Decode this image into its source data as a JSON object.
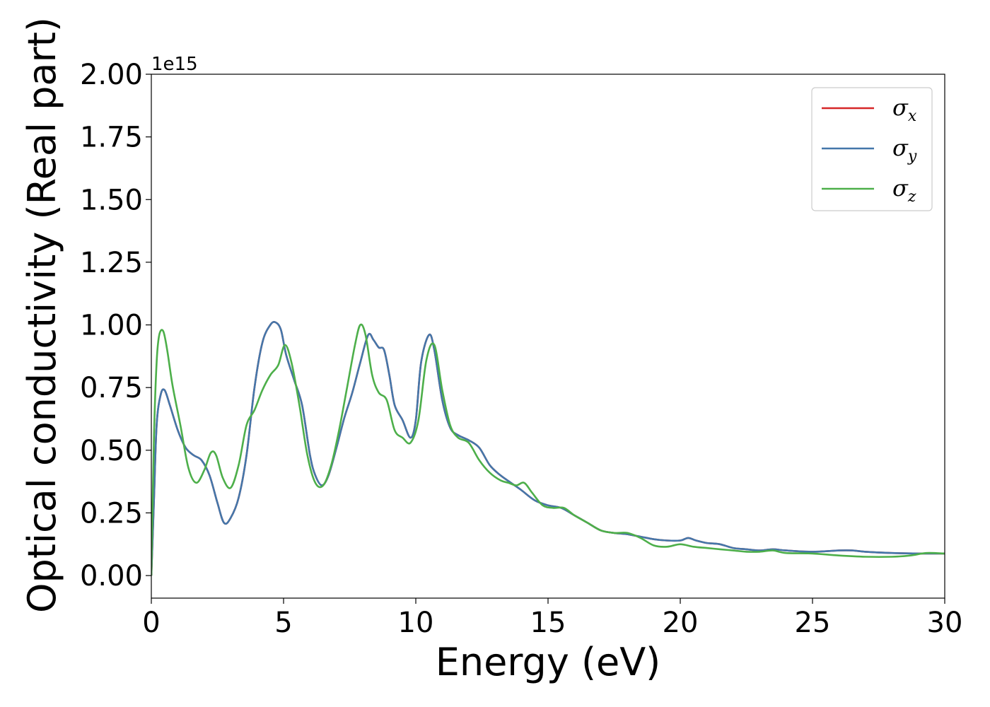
{
  "chart_data": {
    "type": "line",
    "xlabel": "Energy (eV)",
    "ylabel": "Optical conductivity (Real part)",
    "y_offset_label": "1e15",
    "xlim": [
      0,
      30
    ],
    "ylim": [
      -0.09,
      2.0
    ],
    "x_ticks": [
      0,
      5,
      10,
      15,
      20,
      25,
      30
    ],
    "x_tick_labels": [
      "0",
      "5",
      "10",
      "15",
      "20",
      "25",
      "30"
    ],
    "y_ticks": [
      0,
      0.25,
      0.5,
      0.75,
      1.0,
      1.25,
      1.5,
      1.75,
      2.0
    ],
    "y_tick_labels": [
      "0.00",
      "0.25",
      "0.50",
      "0.75",
      "1.00",
      "1.25",
      "1.50",
      "1.75",
      "2.00"
    ],
    "grid": false,
    "legend_position": "top-right",
    "series": [
      {
        "name": "σx",
        "name_base": "σ",
        "name_sub": "x",
        "color": "#d62728",
        "x": [
          0,
          0.1,
          0.2,
          0.35,
          0.5,
          0.7,
          1.0,
          1.3,
          1.6,
          1.9,
          2.2,
          2.5,
          2.75,
          3.0,
          3.3,
          3.6,
          3.9,
          4.2,
          4.5,
          4.7,
          4.9,
          5.1,
          5.4,
          5.7,
          6.0,
          6.2,
          6.45,
          6.7,
          7.0,
          7.3,
          7.6,
          7.9,
          8.2,
          8.4,
          8.6,
          8.8,
          9.0,
          9.2,
          9.5,
          9.8,
          10.0,
          10.2,
          10.5,
          10.7,
          11.0,
          11.3,
          11.6,
          12.0,
          12.4,
          12.8,
          13.2,
          13.6,
          14.0,
          14.5,
          15.0,
          15.5,
          16.0,
          16.5,
          17.0,
          17.5,
          18.0,
          18.5,
          19.0,
          19.5,
          20.0,
          20.3,
          20.6,
          21.0,
          21.5,
          22.0,
          22.5,
          23.0,
          23.5,
          24.0,
          25.0,
          26.0,
          26.5,
          27.0,
          28.0,
          29.0,
          30.0
        ],
        "values": [
          0,
          0.3,
          0.6,
          0.72,
          0.74,
          0.68,
          0.58,
          0.51,
          0.48,
          0.46,
          0.4,
          0.29,
          0.21,
          0.23,
          0.31,
          0.48,
          0.75,
          0.93,
          1.0,
          1.01,
          0.98,
          0.88,
          0.78,
          0.68,
          0.48,
          0.4,
          0.36,
          0.4,
          0.51,
          0.63,
          0.73,
          0.85,
          0.96,
          0.94,
          0.91,
          0.9,
          0.8,
          0.68,
          0.62,
          0.55,
          0.62,
          0.85,
          0.96,
          0.9,
          0.7,
          0.59,
          0.56,
          0.54,
          0.51,
          0.44,
          0.4,
          0.37,
          0.34,
          0.3,
          0.28,
          0.27,
          0.24,
          0.21,
          0.18,
          0.17,
          0.165,
          0.155,
          0.145,
          0.14,
          0.14,
          0.15,
          0.14,
          0.13,
          0.125,
          0.11,
          0.105,
          0.1,
          0.105,
          0.1,
          0.095,
          0.1,
          0.1,
          0.095,
          0.09,
          0.088,
          0.088
        ]
      },
      {
        "name": "σy",
        "name_base": "σ",
        "name_sub": "y",
        "color": "#4477aa",
        "x": [
          0,
          0.1,
          0.2,
          0.35,
          0.5,
          0.7,
          1.0,
          1.3,
          1.6,
          1.9,
          2.2,
          2.5,
          2.75,
          3.0,
          3.3,
          3.6,
          3.9,
          4.2,
          4.5,
          4.7,
          4.9,
          5.1,
          5.4,
          5.7,
          6.0,
          6.2,
          6.45,
          6.7,
          7.0,
          7.3,
          7.6,
          7.9,
          8.2,
          8.4,
          8.6,
          8.8,
          9.0,
          9.2,
          9.5,
          9.8,
          10.0,
          10.2,
          10.5,
          10.7,
          11.0,
          11.3,
          11.6,
          12.0,
          12.4,
          12.8,
          13.2,
          13.6,
          14.0,
          14.5,
          15.0,
          15.5,
          16.0,
          16.5,
          17.0,
          17.5,
          18.0,
          18.5,
          19.0,
          19.5,
          20.0,
          20.3,
          20.6,
          21.0,
          21.5,
          22.0,
          22.5,
          23.0,
          23.5,
          24.0,
          25.0,
          26.0,
          26.5,
          27.0,
          28.0,
          29.0,
          30.0
        ],
        "values": [
          0,
          0.3,
          0.6,
          0.72,
          0.74,
          0.68,
          0.58,
          0.51,
          0.48,
          0.46,
          0.4,
          0.29,
          0.21,
          0.23,
          0.31,
          0.48,
          0.75,
          0.93,
          1.0,
          1.01,
          0.98,
          0.88,
          0.78,
          0.68,
          0.48,
          0.4,
          0.36,
          0.4,
          0.51,
          0.63,
          0.73,
          0.85,
          0.96,
          0.94,
          0.91,
          0.9,
          0.8,
          0.68,
          0.62,
          0.55,
          0.62,
          0.85,
          0.96,
          0.9,
          0.7,
          0.59,
          0.56,
          0.54,
          0.51,
          0.44,
          0.4,
          0.37,
          0.34,
          0.3,
          0.28,
          0.27,
          0.24,
          0.21,
          0.18,
          0.17,
          0.165,
          0.155,
          0.145,
          0.14,
          0.14,
          0.15,
          0.14,
          0.13,
          0.125,
          0.11,
          0.105,
          0.1,
          0.105,
          0.1,
          0.095,
          0.1,
          0.1,
          0.095,
          0.09,
          0.088,
          0.088
        ]
      },
      {
        "name": "σz",
        "name_base": "σ",
        "name_sub": "z",
        "color": "#4daf4a",
        "x": [
          0,
          0.1,
          0.2,
          0.3,
          0.45,
          0.6,
          0.8,
          1.1,
          1.4,
          1.7,
          2.0,
          2.25,
          2.45,
          2.7,
          3.0,
          3.3,
          3.6,
          3.9,
          4.2,
          4.5,
          4.8,
          5.05,
          5.3,
          5.6,
          5.9,
          6.2,
          6.5,
          6.8,
          7.1,
          7.4,
          7.7,
          7.9,
          8.1,
          8.35,
          8.6,
          8.9,
          9.2,
          9.5,
          9.8,
          10.1,
          10.4,
          10.7,
          11.0,
          11.3,
          11.6,
          12.0,
          12.4,
          12.8,
          13.2,
          13.5,
          13.8,
          14.1,
          14.4,
          14.8,
          15.2,
          15.6,
          16.0,
          16.5,
          17.0,
          17.5,
          18.0,
          18.5,
          19.0,
          19.5,
          20.0,
          20.5,
          21.0,
          21.5,
          22.0,
          22.5,
          23.0,
          23.5,
          24.0,
          25.0,
          26.0,
          27.0,
          28.0,
          28.7,
          29.3,
          30.0
        ],
        "values": [
          0,
          0.55,
          0.85,
          0.96,
          0.975,
          0.9,
          0.76,
          0.6,
          0.43,
          0.37,
          0.42,
          0.49,
          0.48,
          0.39,
          0.35,
          0.44,
          0.6,
          0.66,
          0.74,
          0.8,
          0.84,
          0.92,
          0.85,
          0.68,
          0.48,
          0.37,
          0.36,
          0.44,
          0.58,
          0.75,
          0.92,
          1.0,
          0.96,
          0.8,
          0.73,
          0.7,
          0.58,
          0.55,
          0.53,
          0.62,
          0.86,
          0.92,
          0.74,
          0.6,
          0.55,
          0.53,
          0.46,
          0.41,
          0.38,
          0.37,
          0.36,
          0.37,
          0.33,
          0.28,
          0.27,
          0.27,
          0.24,
          0.21,
          0.18,
          0.17,
          0.17,
          0.15,
          0.12,
          0.115,
          0.125,
          0.115,
          0.11,
          0.105,
          0.1,
          0.095,
          0.095,
          0.1,
          0.09,
          0.088,
          0.08,
          0.075,
          0.075,
          0.08,
          0.09,
          0.088
        ]
      }
    ]
  }
}
